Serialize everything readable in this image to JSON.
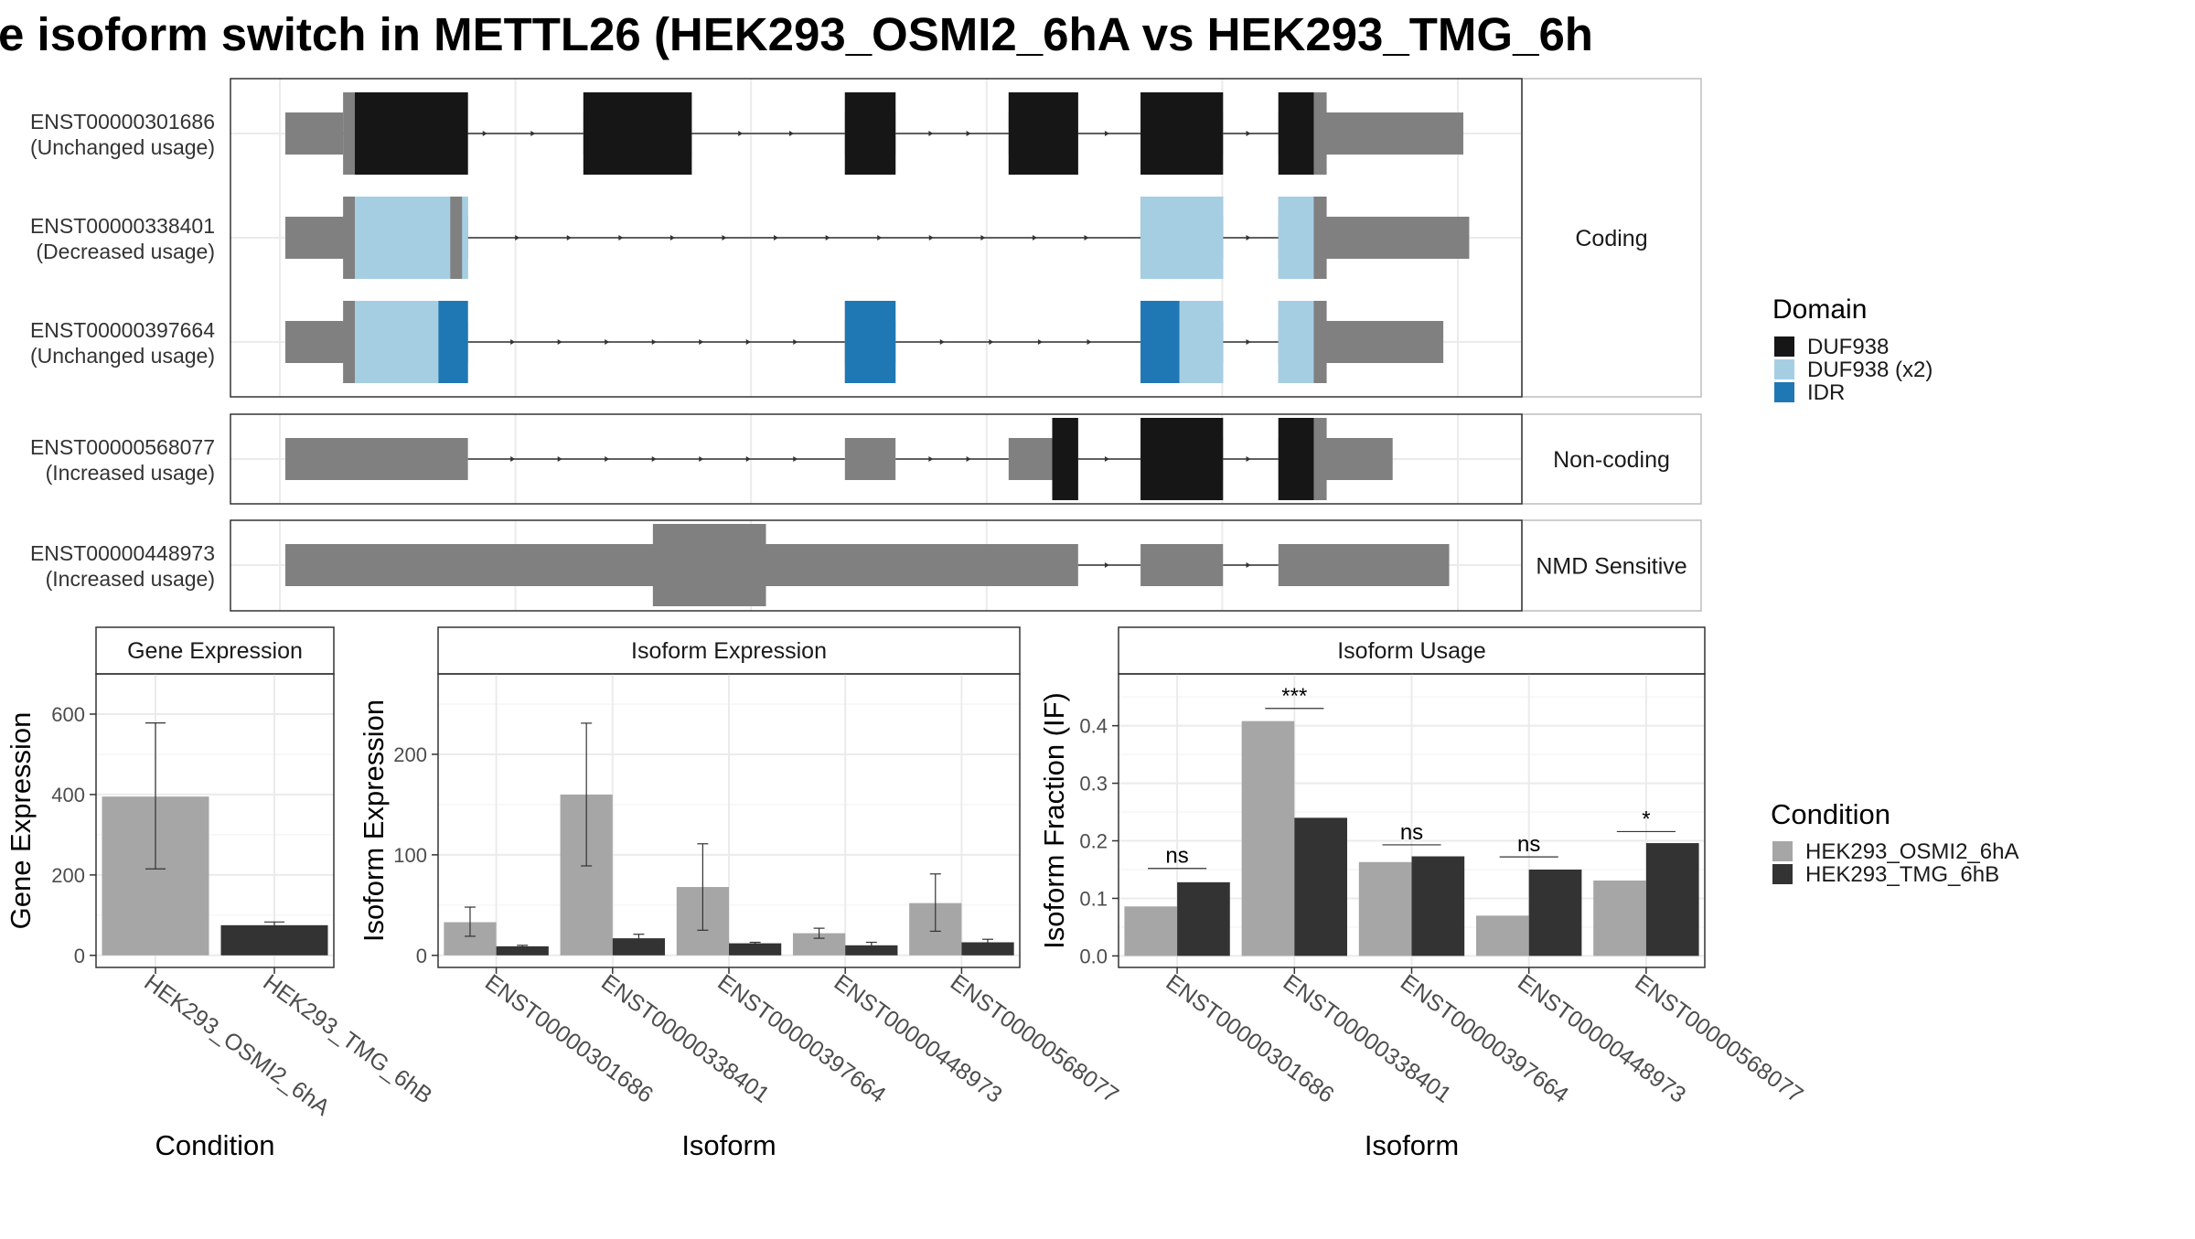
{
  "title": "e isoform switch in METTL26 (HEK293_OSMI2_6hA vs HEK293_TMG_6h",
  "colors": {
    "background": "#ffffff",
    "grid": "#ebebeb",
    "panel_border": "#333333",
    "strip_border": "#bdbdbd",
    "utr": "#808080",
    "intron": "#333333",
    "DUF938": "#161616",
    "DUF938 (x2)": "#a6cee3",
    "IDR": "#1f78b4",
    "HEK293_OSMI2_6hA": "#a6a6a6",
    "HEK293_TMG_6hB": "#333333"
  },
  "structure": {
    "facets": [
      "Coding",
      "Non-coding",
      "NMD Sensitive"
    ],
    "domain_legend": {
      "title": "Domain",
      "items": [
        "DUF938",
        "DUF938 (x2)",
        "IDR"
      ]
    },
    "transcripts": [
      {
        "id": "ENST00000301686",
        "label": "ENST00000301686",
        "usage": "(Unchanged usage)",
        "facet": "Coding",
        "exons": [
          [
            0.0,
            0.049
          ],
          [
            0.253,
            0.345
          ],
          [
            0.475,
            0.518
          ],
          [
            0.614,
            0.673
          ],
          [
            0.726,
            0.796
          ],
          [
            0.843,
            1.0
          ]
        ],
        "cds": [
          [
            0.049,
            0.155
          ],
          [
            0.253,
            0.345
          ],
          [
            0.475,
            0.518
          ],
          [
            0.614,
            0.673
          ],
          [
            0.726,
            0.796
          ],
          [
            0.843,
            0.884
          ]
        ],
        "domains": [
          {
            "name": "DUF938",
            "start": 0.059,
            "end": 0.155
          },
          {
            "name": "DUF938",
            "start": 0.253,
            "end": 0.345
          },
          {
            "name": "DUF938",
            "start": 0.475,
            "end": 0.518
          },
          {
            "name": "DUF938",
            "start": 0.614,
            "end": 0.673
          },
          {
            "name": "DUF938",
            "start": 0.726,
            "end": 0.796
          },
          {
            "name": "DUF938",
            "start": 0.843,
            "end": 0.873
          }
        ]
      },
      {
        "id": "ENST00000338401",
        "label": "ENST00000338401",
        "usage": "(Decreased usage)",
        "facet": "Coding",
        "exons": [
          [
            0.0,
            0.155
          ],
          [
            0.726,
            0.796
          ],
          [
            0.843,
            1.005
          ]
        ],
        "cds": [
          [
            0.049,
            0.155
          ],
          [
            0.726,
            0.796
          ],
          [
            0.843,
            0.884
          ]
        ],
        "domains": [
          {
            "name": "DUF938 (x2)",
            "start": 0.059,
            "end": 0.14
          },
          {
            "name": "DUF938 (x2)",
            "start": 0.15,
            "end": 0.155
          },
          {
            "name": "DUF938 (x2)",
            "start": 0.726,
            "end": 0.796
          },
          {
            "name": "DUF938 (x2)",
            "start": 0.843,
            "end": 0.873
          }
        ]
      },
      {
        "id": "ENST00000397664",
        "label": "ENST00000397664",
        "usage": "(Unchanged usage)",
        "facet": "Coding",
        "exons": [
          [
            0.0,
            0.155
          ],
          [
            0.475,
            0.518
          ],
          [
            0.726,
            0.796
          ],
          [
            0.843,
            0.983
          ]
        ],
        "cds": [
          [
            0.049,
            0.155
          ],
          [
            0.475,
            0.518
          ],
          [
            0.726,
            0.796
          ],
          [
            0.843,
            0.884
          ]
        ],
        "domains": [
          {
            "name": "DUF938 (x2)",
            "start": 0.059,
            "end": 0.13
          },
          {
            "name": "IDR",
            "start": 0.13,
            "end": 0.155
          },
          {
            "name": "IDR",
            "start": 0.475,
            "end": 0.518
          },
          {
            "name": "IDR",
            "start": 0.726,
            "end": 0.759
          },
          {
            "name": "DUF938 (x2)",
            "start": 0.759,
            "end": 0.796
          },
          {
            "name": "DUF938 (x2)",
            "start": 0.843,
            "end": 0.873
          }
        ]
      },
      {
        "id": "ENST00000568077",
        "label": "ENST00000568077",
        "usage": "(Increased usage)",
        "facet": "Non-coding",
        "exons": [
          [
            0.0,
            0.155
          ],
          [
            0.475,
            0.518
          ],
          [
            0.614,
            0.673
          ],
          [
            0.726,
            0.796
          ],
          [
            0.843,
            0.94
          ]
        ],
        "cds": [
          [
            0.651,
            0.673
          ],
          [
            0.726,
            0.796
          ],
          [
            0.843,
            0.884
          ]
        ],
        "domains": [
          {
            "name": "DUF938",
            "start": 0.651,
            "end": 0.673
          },
          {
            "name": "DUF938",
            "start": 0.726,
            "end": 0.796
          },
          {
            "name": "DUF938",
            "start": 0.843,
            "end": 0.873
          }
        ]
      },
      {
        "id": "ENST00000448973",
        "label": "ENST00000448973",
        "usage": "(Increased usage)",
        "facet": "NMD Sensitive",
        "exons": [
          [
            0.0,
            0.673
          ],
          [
            0.726,
            0.796
          ],
          [
            0.843,
            0.988
          ]
        ],
        "cds": [
          [
            0.312,
            0.408
          ]
        ],
        "domains": []
      }
    ]
  },
  "chart_data": [
    {
      "type": "bar",
      "title": "Gene Expression",
      "xlabel": "Condition",
      "ylabel": "Gene Expression",
      "categories": [
        "HEK293_OSMI2_6hA",
        "HEK293_TMG_6hB"
      ],
      "values": [
        395,
        75
      ],
      "error_low": [
        215,
        67
      ],
      "error_high": [
        578,
        83
      ],
      "ylim": [
        -30,
        700
      ],
      "yticks": [
        0,
        200,
        400,
        600
      ],
      "grid": true
    },
    {
      "type": "bar",
      "title": "Isoform Expression",
      "xlabel": "Isoform",
      "ylabel": "Isoform Expression",
      "categories": [
        "ENST00000301686",
        "ENST00000338401",
        "ENST00000397664",
        "ENST00000448973",
        "ENST00000568077"
      ],
      "series": [
        {
          "name": "HEK293_OSMI2_6hA",
          "values": [
            33,
            160,
            68,
            22,
            52
          ],
          "error_low": [
            19,
            89,
            25,
            17,
            24
          ],
          "error_high": [
            48,
            231,
            111,
            27,
            81
          ]
        },
        {
          "name": "HEK293_TMG_6hB",
          "values": [
            9,
            17,
            12,
            10,
            13
          ],
          "error_low": [
            8,
            13,
            10,
            7,
            10
          ],
          "error_high": [
            10,
            21,
            13,
            13,
            16
          ]
        }
      ],
      "ylim": [
        -12,
        280
      ],
      "yticks": [
        0,
        100,
        200
      ],
      "grid": true
    },
    {
      "type": "bar",
      "title": "Isoform Usage",
      "xlabel": "Isoform",
      "ylabel": "Isoform Fraction (IF)",
      "categories": [
        "ENST00000301686",
        "ENST00000338401",
        "ENST00000397664",
        "ENST00000448973",
        "ENST00000568077"
      ],
      "series": [
        {
          "name": "HEK293_OSMI2_6hA",
          "values": [
            0.086,
            0.408,
            0.163,
            0.07,
            0.131
          ]
        },
        {
          "name": "HEK293_TMG_6hB",
          "values": [
            0.128,
            0.24,
            0.173,
            0.15,
            0.196
          ]
        }
      ],
      "significance": [
        "ns",
        "***",
        "ns",
        "ns",
        "*"
      ],
      "significance_y": [
        0.152,
        0.43,
        0.193,
        0.172,
        0.216
      ],
      "ylim": [
        -0.02,
        0.49
      ],
      "yticks": [
        0.0,
        0.1,
        0.2,
        0.3,
        0.4
      ],
      "ytick_labels": [
        "0.0",
        "0.1",
        "0.2",
        "0.3",
        "0.4"
      ],
      "grid": true
    }
  ],
  "condition_legend": {
    "title": "Condition",
    "items": [
      "HEK293_OSMI2_6hA",
      "HEK293_TMG_6hB"
    ]
  }
}
